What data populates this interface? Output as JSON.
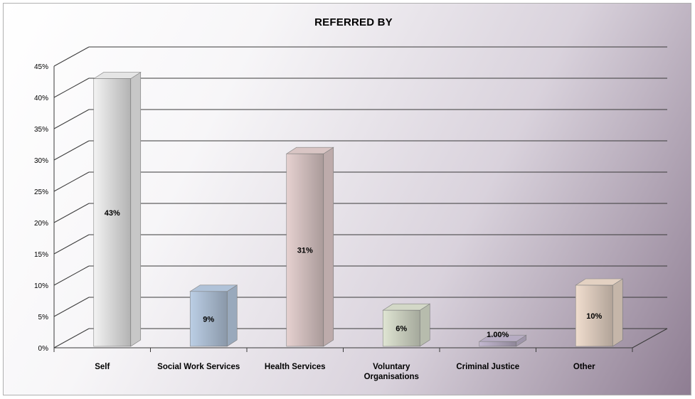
{
  "chart_data": {
    "type": "bar",
    "title": "REFERRED BY",
    "xlabel": "",
    "ylabel": "",
    "ylim": [
      0,
      45
    ],
    "yticks": [
      "0%",
      "5%",
      "10%",
      "15%",
      "20%",
      "25%",
      "30%",
      "35%",
      "40%",
      "45%"
    ],
    "grid": true,
    "categories": [
      "Self",
      "Social Work Services",
      "Health Services",
      "Voluntary Organisations",
      "Criminal Justice",
      "Other"
    ],
    "values": [
      43,
      9,
      31,
      6,
      1,
      10
    ],
    "data_labels": [
      "43%",
      "9%",
      "31%",
      "6%",
      "1.00%",
      "10%"
    ],
    "colors": [
      "#ffffff",
      "#c5d9f1",
      "#f2dcdb",
      "#ebf1de",
      "#ccc0da",
      "#fde9d9"
    ]
  }
}
